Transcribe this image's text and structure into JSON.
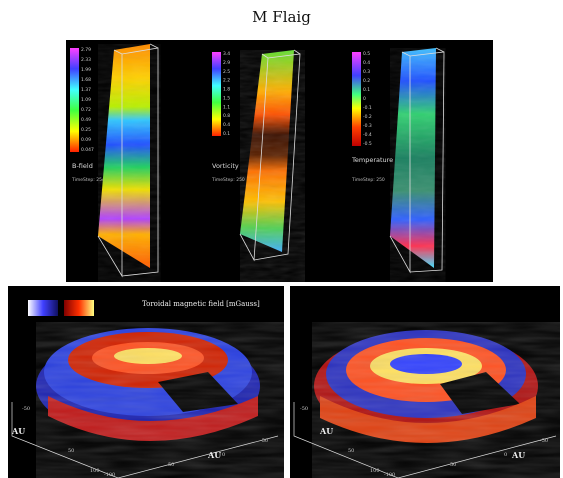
{
  "figure_title": "M Flaig",
  "top_panels": [
    {
      "label": "B-field",
      "timestep": "TimeStep: 254",
      "scale_ticks": [
        "2.79",
        "2.33",
        "1.99",
        "1.68",
        "1.37",
        "1.09",
        "0.72",
        "0.49",
        "0.25",
        "0.09",
        "0.047"
      ]
    },
    {
      "label": "Vorticity",
      "timestep": "TimeStep: 250",
      "scale_ticks": [
        "3.4",
        "2.9",
        "2.5",
        "2.2",
        "1.8",
        "1.5",
        "1.1",
        "0.8",
        "0.4",
        "0.1"
      ]
    },
    {
      "label": "Temperature fluctuations",
      "timestep": "TimeStep: 250",
      "scale_ticks": [
        "0.5",
        "0.4",
        "0.3",
        "0.2",
        "0.1",
        "0",
        "-0.1",
        "-0.2",
        "-0.3",
        "-0.4",
        "-0.5"
      ]
    }
  ],
  "bottom_left": {
    "title": "Toroidal magnetic field [mGauss]",
    "axis_labels": [
      "AU",
      "AU"
    ],
    "ticks": [
      "-50",
      "50",
      "100",
      "-100",
      "50",
      "-50",
      "0"
    ]
  },
  "bottom_right": {
    "axis_labels": [
      "AU",
      "AU"
    ],
    "ticks": [
      "-50",
      "50",
      "100",
      "-100",
      "50",
      "-50",
      "0"
    ]
  }
}
